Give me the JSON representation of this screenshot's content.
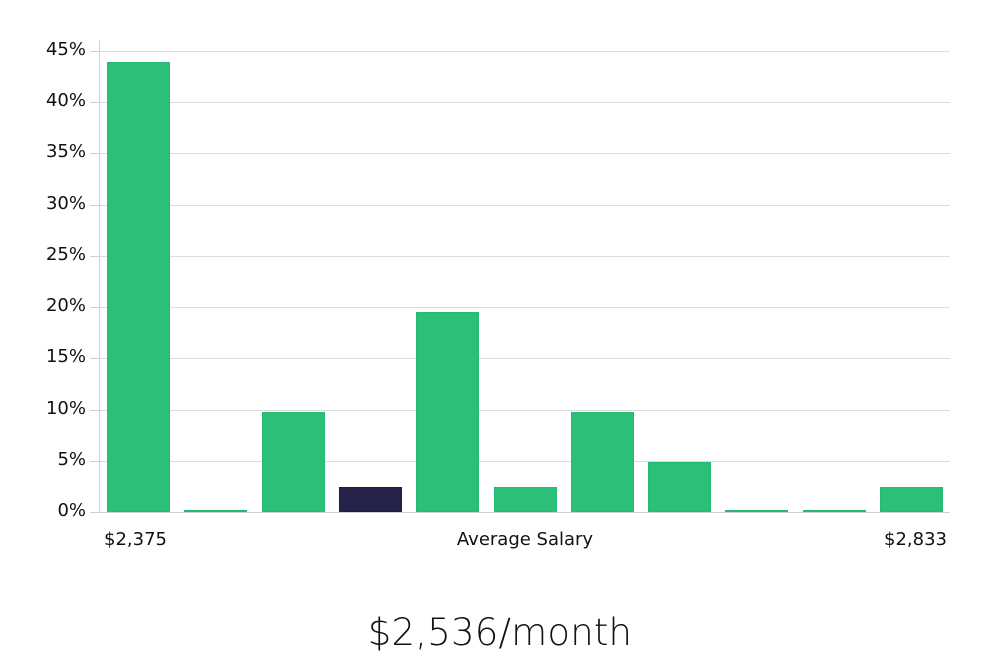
{
  "chart_data": {
    "type": "bar",
    "title": "",
    "xlabel": "Average Salary",
    "ylabel": "",
    "ylim": [
      0,
      45
    ],
    "y_ticks": [
      "0%",
      "5%",
      "10%",
      "15%",
      "20%",
      "25%",
      "30%",
      "35%",
      "40%",
      "45%"
    ],
    "grid": true,
    "x_range_labels": {
      "min": "$2,375",
      "max": "$2,833"
    },
    "categories": [
      "bin1",
      "bin2",
      "bin3",
      "bin4",
      "bin5",
      "bin6",
      "bin7",
      "bin8",
      "bin9",
      "bin10",
      "bin11"
    ],
    "values": [
      43.9,
      0,
      9.76,
      2.44,
      19.5,
      2.44,
      9.76,
      4.88,
      0,
      0,
      2.44
    ],
    "highlighted_index": 3,
    "colors": {
      "bar": "#2bbf77",
      "highlight": "#26234a",
      "grid": "#dcdcdc"
    },
    "summary": "$2,536/month"
  },
  "axis": {
    "x_min_label": "$2,375",
    "x_title": "Average Salary",
    "x_max_label": "$2,833"
  },
  "summary": {
    "value": "$2,536/month"
  }
}
